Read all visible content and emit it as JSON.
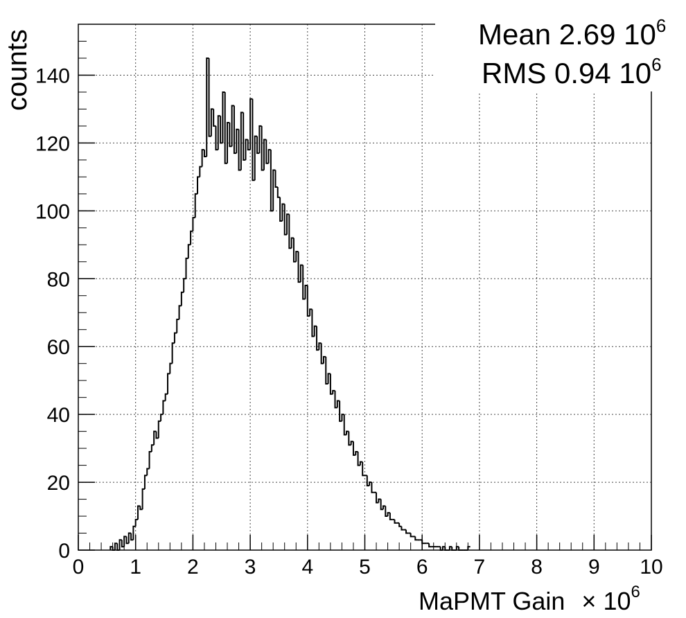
{
  "chart_data": {
    "type": "histogram",
    "xlabel": "MaPMT Gain",
    "xlabel_multiplier": "× 10",
    "xlabel_multiplier_exp": "6",
    "ylabel": "counts",
    "xlim": [
      0,
      10
    ],
    "ylim": [
      0,
      155
    ],
    "x_ticks": [
      "0",
      "1",
      "2",
      "3",
      "4",
      "5",
      "6",
      "7",
      "8",
      "9",
      "10"
    ],
    "y_ticks": [
      "0",
      "20",
      "40",
      "60",
      "80",
      "100",
      "120",
      "140"
    ],
    "grid": true,
    "stats": {
      "mean_label": "Mean 2.69 10",
      "mean_exp": "6",
      "rms_label": "RMS 0.94 10",
      "rms_exp": "6"
    },
    "bin_width": 0.04,
    "bins_start": 0.56,
    "counts": [
      1,
      0,
      2,
      0,
      3,
      1,
      4,
      2,
      5,
      3,
      7,
      9,
      13,
      12,
      18,
      22,
      24,
      29,
      31,
      35,
      33,
      38,
      40,
      44,
      46,
      52,
      55,
      61,
      64,
      68,
      72,
      76,
      80,
      86,
      90,
      94,
      98,
      105,
      110,
      113,
      118,
      116,
      145,
      122,
      130,
      125,
      118,
      128,
      120,
      135,
      114,
      126,
      119,
      131,
      117,
      124,
      112,
      129,
      115,
      121,
      118,
      133,
      109,
      122,
      117,
      125,
      112,
      121,
      114,
      118,
      100,
      112,
      107,
      104,
      97,
      102,
      93,
      99,
      89,
      92,
      85,
      88,
      79,
      84,
      74,
      78,
      69,
      71,
      63,
      66,
      59,
      61,
      55,
      57,
      49,
      52,
      46,
      47,
      42,
      44,
      38,
      40,
      34,
      35,
      31,
      32,
      28,
      29,
      25,
      26,
      22,
      22,
      19,
      20,
      17,
      17,
      14,
      15,
      12,
      13,
      10,
      11,
      9,
      9,
      8,
      8,
      7,
      6,
      6,
      5,
      5,
      4,
      4,
      3,
      3,
      3,
      2,
      2,
      2,
      1,
      1,
      1,
      1,
      1,
      0,
      1,
      0,
      0,
      1,
      0,
      0,
      1,
      0,
      0,
      0,
      0,
      1
    ]
  }
}
